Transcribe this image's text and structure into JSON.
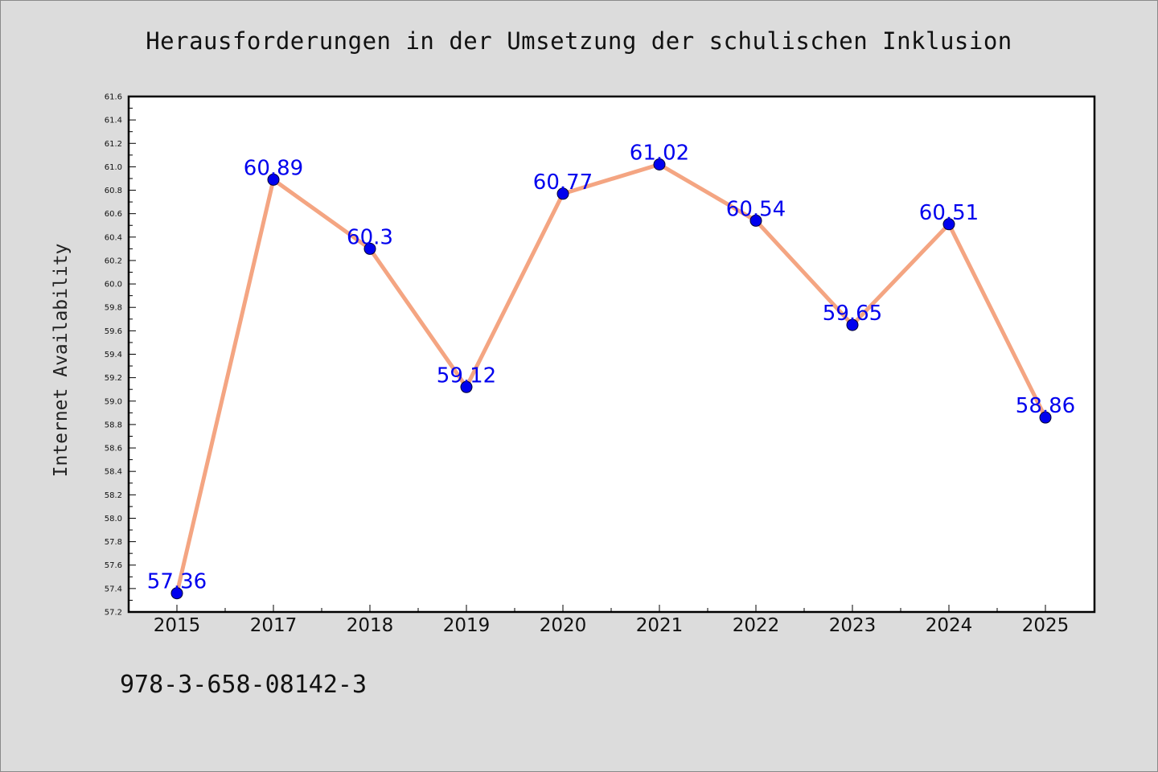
{
  "chart_data": {
    "type": "line",
    "title": "Herausforderungen in der Umsetzung der schulischen Inklusion",
    "xlabel": "",
    "ylabel": "Internet Availability",
    "categories": [
      "2015",
      "2017",
      "2018",
      "2019",
      "2020",
      "2021",
      "2022",
      "2023",
      "2024",
      "2025"
    ],
    "series": [
      {
        "values": [
          57.36,
          60.89,
          60.3,
          59.12,
          60.77,
          61.02,
          60.54,
          59.65,
          60.51,
          58.86
        ],
        "labels": [
          "57.36",
          "60.89",
          "60.3",
          "59.12",
          "60.77",
          "61.02",
          "60.54",
          "59.65",
          "60.51",
          "58.86"
        ]
      }
    ],
    "ylim": [
      57.2,
      61.6
    ],
    "yticks": [
      "57.2",
      "57.4",
      "57.6",
      "57.8",
      "58.0",
      "58.2",
      "58.4",
      "58.6",
      "58.8",
      "59.0",
      "59.2",
      "59.4",
      "59.6",
      "59.8",
      "60.0",
      "60.2",
      "60.4",
      "60.6",
      "60.8",
      "61.0",
      "61.2",
      "61.4",
      "61.6"
    ],
    "grid": false,
    "legend": "none",
    "colors": {
      "line": "#f4a582",
      "marker": "#0000ee",
      "data_label": "#0000ee",
      "plot_background": "#ffffff",
      "figure_background": "#dcdcdc"
    }
  },
  "footer": {
    "isbn": "978-3-658-08142-3"
  }
}
